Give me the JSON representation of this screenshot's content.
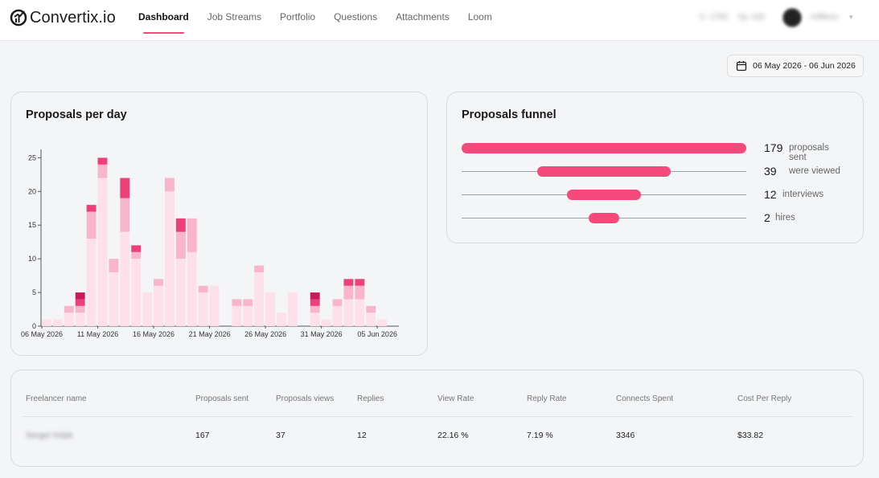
{
  "app": {
    "brand": "Convertix.io",
    "nav": [
      {
        "label": "Dashboard",
        "active": true
      },
      {
        "label": "Job Streams"
      },
      {
        "label": "Portfolio"
      },
      {
        "label": "Questions"
      },
      {
        "label": "Attachments"
      },
      {
        "label": "Loom"
      }
    ],
    "header_blurred": {
      "item1": "C: 1760",
      "item2": "hp: 432",
      "user_name": "mfilleon"
    }
  },
  "date_range": {
    "label": "06 May 2026 - 06 Jun 2026"
  },
  "proposals_per_day": {
    "title": "Proposals per day"
  },
  "chart_data": {
    "type": "bar",
    "stacked": true,
    "title": "Proposals per day",
    "xlabel": "",
    "ylabel": "",
    "ylim": [
      0,
      26
    ],
    "yticks": [
      0,
      5,
      10,
      15,
      20,
      25
    ],
    "tick_labels": [
      "06 May 2026",
      "11 May 2026",
      "16 May 2026",
      "21 May 2026",
      "26 May 2026",
      "31 May 2026",
      "05 Jun 2026"
    ],
    "tick_label_index": [
      0,
      5,
      10,
      15,
      20,
      25,
      30
    ],
    "categories": [
      "06 May",
      "07 May",
      "08 May",
      "09 May",
      "10 May",
      "11 May",
      "12 May",
      "13 May",
      "14 May",
      "15 May",
      "16 May",
      "17 May",
      "18 May",
      "19 May",
      "20 May",
      "21 May",
      "22 May",
      "23 May",
      "24 May",
      "25 May",
      "26 May",
      "27 May",
      "28 May",
      "29 May",
      "30 May",
      "31 May",
      "01 Jun",
      "02 Jun",
      "03 Jun",
      "04 Jun",
      "05 Jun",
      "06 Jun"
    ],
    "series": [
      {
        "color": "#fde0ea",
        "values": [
          1,
          1,
          2,
          2,
          13,
          22,
          8,
          14,
          10,
          5,
          6,
          20,
          10,
          11,
          5,
          6,
          0,
          3,
          3,
          8,
          5,
          2,
          5,
          0,
          2,
          1,
          3,
          4,
          4,
          2,
          1,
          0
        ]
      },
      {
        "color": "#f8b5cb",
        "values": [
          0,
          0,
          1,
          1,
          4,
          2,
          2,
          5,
          1,
          0,
          1,
          2,
          4,
          5,
          1,
          0,
          0,
          1,
          1,
          1,
          0,
          0,
          0,
          0,
          1,
          0,
          1,
          2,
          2,
          1,
          0,
          0
        ]
      },
      {
        "color": "#ef3f79",
        "values": [
          0,
          0,
          0,
          1,
          1,
          1,
          0,
          3,
          1,
          0,
          0,
          0,
          2,
          0,
          0,
          0,
          0,
          0,
          0,
          0,
          0,
          0,
          0,
          0,
          1,
          0,
          0,
          1,
          1,
          0,
          0,
          0
        ]
      },
      {
        "color": "#c8195b",
        "values": [
          0,
          0,
          0,
          1,
          0,
          0,
          0,
          0,
          0,
          0,
          0,
          0,
          0,
          0,
          0,
          0,
          0,
          0,
          0,
          0,
          0,
          0,
          0,
          0,
          1,
          0,
          0,
          0,
          0,
          0,
          0,
          0
        ]
      }
    ]
  },
  "funnel": {
    "title": "Proposals funnel",
    "color": "#f4497a",
    "rows": [
      {
        "value": 179,
        "label": "proposals sent"
      },
      {
        "value": 39,
        "label": "were viewed"
      },
      {
        "value": 12,
        "label": "interviews"
      },
      {
        "value": 2,
        "label": "hires"
      }
    ]
  },
  "table": {
    "headers": [
      "Freelancer name",
      "Proposals sent",
      "Proposals views",
      "Replies",
      "View Rate",
      "Reply Rate",
      "Connects Spent",
      "Cost Per Reply"
    ],
    "rows": [
      [
        "Sergei Volyk",
        "167",
        "37",
        "12",
        "22.16 %",
        "7.19 %",
        "3346",
        "$33.82"
      ]
    ]
  }
}
